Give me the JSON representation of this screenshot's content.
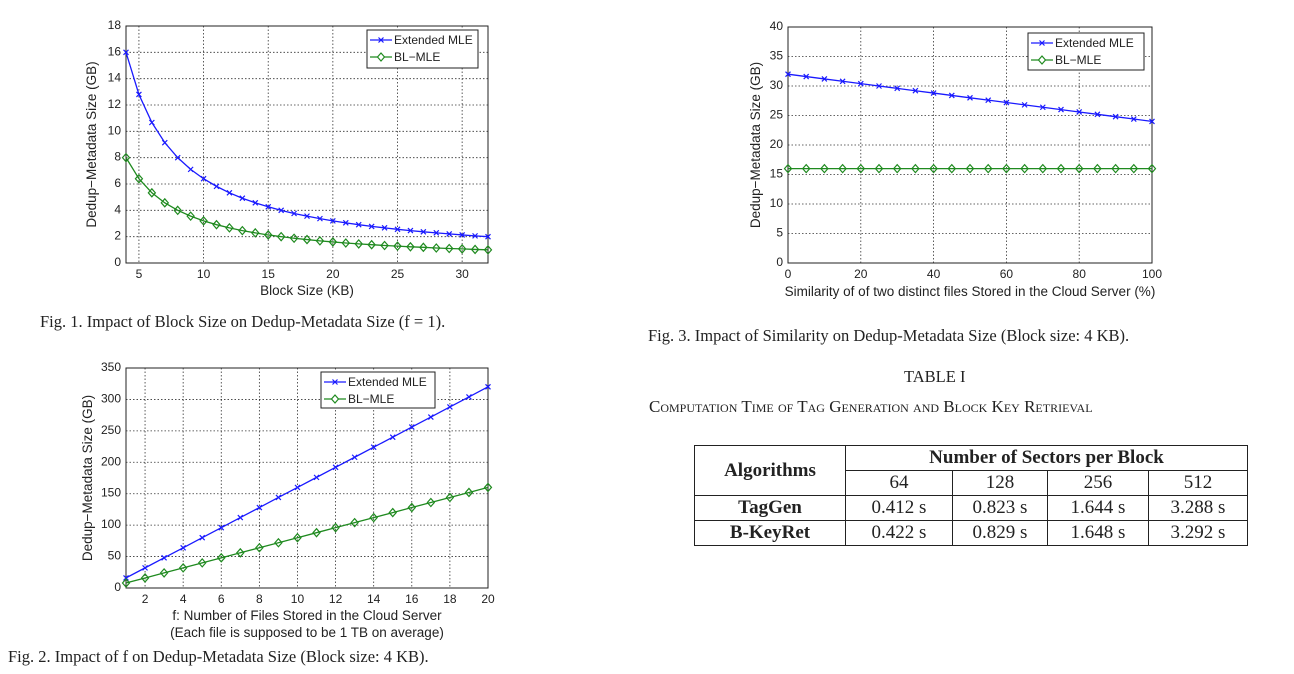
{
  "figures": {
    "fig1_caption": "Fig. 1.   Impact of Block Size on Dedup-Metadata Size (f = 1).",
    "fig2_caption": "Fig. 2.   Impact of f on Dedup-Metadata Size (Block size: 4 KB).",
    "fig3_caption": "Fig. 3.   Impact of Similarity on Dedup-Metadata Size (Block size: 4 KB)."
  },
  "table": {
    "label": "TABLE I",
    "title": "Computation Time of Tag Generation and Block Key Retrieval",
    "header_algorithms": "Algorithms",
    "header_group": "Number of Sectors per Block",
    "columns": [
      "64",
      "128",
      "256",
      "512"
    ],
    "rows": [
      {
        "name": "TagGen",
        "values": [
          "0.412 s",
          "0.823 s",
          "1.644 s",
          "3.288 s"
        ]
      },
      {
        "name": "B-KeyRet",
        "values": [
          "0.422 s",
          "0.829 s",
          "1.648 s",
          "3.292 s"
        ]
      }
    ]
  },
  "chart_data": [
    {
      "id": "fig1",
      "type": "line",
      "xlabel": "Block Size (KB)",
      "xlabel2": "",
      "ylabel": "Dedup−Metadata Size (GB)",
      "xlim": [
        4,
        32
      ],
      "ylim": [
        0,
        18
      ],
      "xticks": [
        5,
        10,
        15,
        20,
        25,
        30
      ],
      "yticks": [
        0,
        2,
        4,
        6,
        8,
        10,
        12,
        14,
        16,
        18
      ],
      "grid": true,
      "legend": "top-right",
      "x": [
        4,
        5,
        6,
        7,
        8,
        9,
        10,
        11,
        12,
        13,
        14,
        15,
        16,
        17,
        18,
        19,
        20,
        21,
        22,
        23,
        24,
        25,
        26,
        27,
        28,
        29,
        30,
        31,
        32
      ],
      "series": [
        {
          "name": "Extended MLE",
          "marker": "x",
          "color": "#1a1aff",
          "values": [
            16,
            12.8,
            10.67,
            9.14,
            8,
            7.11,
            6.4,
            5.82,
            5.33,
            4.92,
            4.57,
            4.27,
            4,
            3.76,
            3.56,
            3.37,
            3.2,
            3.05,
            2.91,
            2.78,
            2.67,
            2.56,
            2.46,
            2.37,
            2.29,
            2.21,
            2.13,
            2.06,
            2
          ]
        },
        {
          "name": "BL−MLE",
          "marker": "diamond",
          "color": "#1f8a1f",
          "values": [
            8,
            6.4,
            5.33,
            4.57,
            4,
            3.56,
            3.2,
            2.91,
            2.67,
            2.46,
            2.29,
            2.13,
            2,
            1.88,
            1.78,
            1.68,
            1.6,
            1.52,
            1.45,
            1.39,
            1.33,
            1.28,
            1.23,
            1.19,
            1.14,
            1.1,
            1.07,
            1.03,
            1
          ]
        }
      ]
    },
    {
      "id": "fig2",
      "type": "line",
      "xlabel": "f: Number of Files Stored in the Cloud Server",
      "xlabel2": "(Each file is supposed to be 1 TB on average)",
      "ylabel": "Dedup−Metadata Size (GB)",
      "xlim": [
        1,
        20
      ],
      "ylim": [
        0,
        350
      ],
      "xticks": [
        2,
        4,
        6,
        8,
        10,
        12,
        14,
        16,
        18,
        20
      ],
      "yticks": [
        0,
        50,
        100,
        150,
        200,
        250,
        300,
        350
      ],
      "grid": true,
      "legend": "top-right",
      "x": [
        1,
        2,
        3,
        4,
        5,
        6,
        7,
        8,
        9,
        10,
        11,
        12,
        13,
        14,
        15,
        16,
        17,
        18,
        19,
        20
      ],
      "series": [
        {
          "name": "Extended MLE",
          "marker": "x",
          "color": "#1a1aff",
          "values": [
            16,
            32,
            48,
            64,
            80,
            96,
            112,
            128,
            144,
            160,
            176,
            192,
            208,
            224,
            240,
            256,
            272,
            288,
            304,
            320
          ]
        },
        {
          "name": "BL−MLE",
          "marker": "diamond",
          "color": "#1f8a1f",
          "values": [
            8,
            16,
            24,
            32,
            40,
            48,
            56,
            64,
            72,
            80,
            88,
            96,
            104,
            112,
            120,
            128,
            136,
            144,
            152,
            160
          ]
        }
      ]
    },
    {
      "id": "fig3",
      "type": "line",
      "xlabel": "Similarity of of two distinct files Stored in the Cloud Server (%)",
      "xlabel2": "",
      "ylabel": "Dedup−Metadata Size (GB)",
      "xlim": [
        0,
        100
      ],
      "ylim": [
        0,
        40
      ],
      "xticks": [
        0,
        20,
        40,
        60,
        80,
        100
      ],
      "yticks": [
        0,
        5,
        10,
        15,
        20,
        25,
        30,
        35,
        40
      ],
      "grid": true,
      "legend": "top-right",
      "x": [
        0,
        5,
        10,
        15,
        20,
        25,
        30,
        35,
        40,
        45,
        50,
        55,
        60,
        65,
        70,
        75,
        80,
        85,
        90,
        95,
        100
      ],
      "series": [
        {
          "name": "Extended MLE",
          "marker": "x",
          "color": "#1a1aff",
          "values": [
            32,
            31.6,
            31.2,
            30.8,
            30.4,
            30,
            29.6,
            29.2,
            28.8,
            28.4,
            28,
            27.6,
            27.2,
            26.8,
            26.4,
            26,
            25.6,
            25.2,
            24.8,
            24.4,
            24
          ]
        },
        {
          "name": "BL−MLE",
          "marker": "diamond",
          "color": "#1f8a1f",
          "values": [
            16,
            16,
            16,
            16,
            16,
            16,
            16,
            16,
            16,
            16,
            16,
            16,
            16,
            16,
            16,
            16,
            16,
            16,
            16,
            16,
            16
          ]
        }
      ]
    }
  ]
}
